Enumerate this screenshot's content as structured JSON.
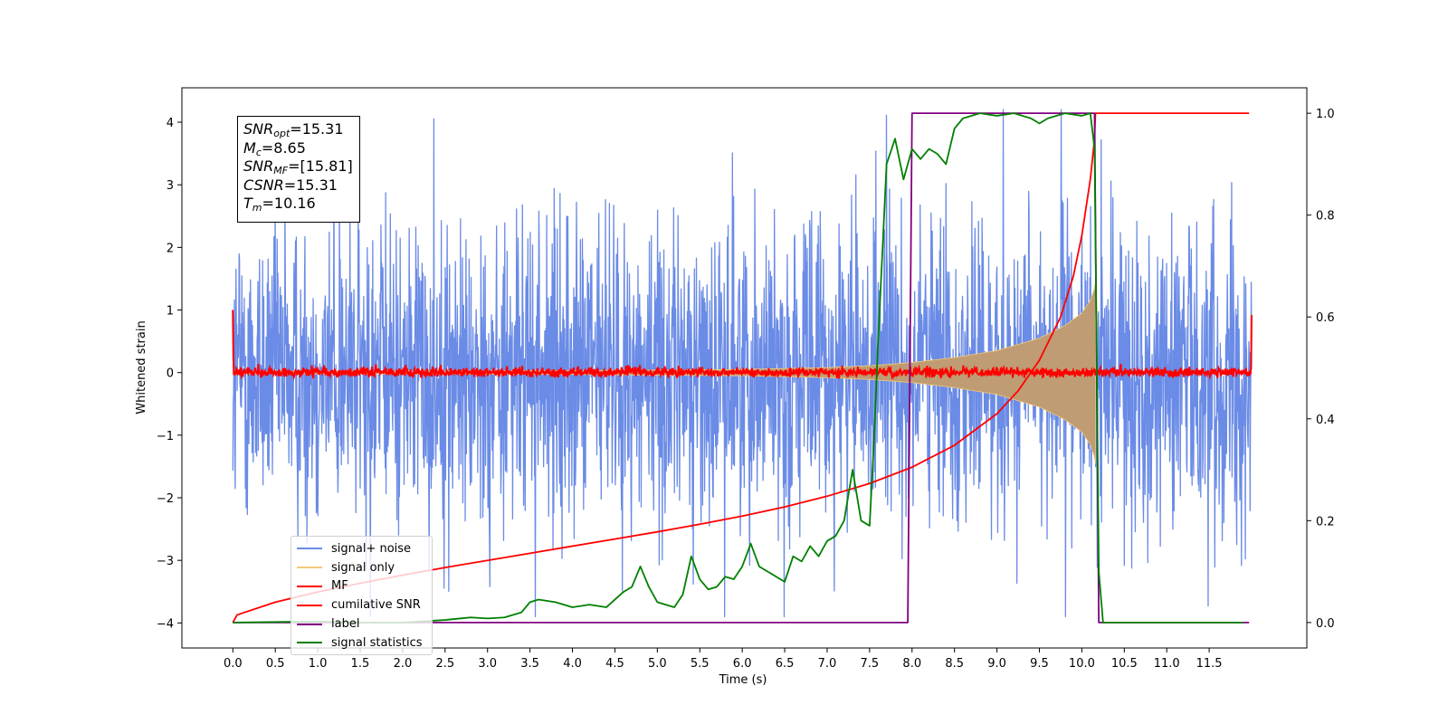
{
  "chart_data": {
    "type": "line",
    "xlabel": "Time (s)",
    "ylabel": "Whitened strain",
    "xlim": [
      -0.6,
      12.65
    ],
    "ylim": [
      -4.4,
      4.55
    ],
    "y2lim": [
      -0.05,
      1.05
    ],
    "x_ticks": [
      "0.0",
      "0.5",
      "1.0",
      "1.5",
      "2.0",
      "2.5",
      "3.0",
      "3.5",
      "4.0",
      "4.5",
      "5.0",
      "5.5",
      "6.0",
      "6.5",
      "7.0",
      "7.5",
      "8.0",
      "8.5",
      "9.0",
      "9.5",
      "10.0",
      "10.5",
      "11.0",
      "11.5"
    ],
    "y_ticks": [
      "−4",
      "−3",
      "−2",
      "−1",
      "0",
      "1",
      "2",
      "3",
      "4"
    ],
    "y2_ticks": [
      "0.0",
      "0.2",
      "0.4",
      "0.6",
      "0.8",
      "1.0"
    ],
    "grid": false,
    "legend_position": "lower-left",
    "annotation": {
      "snr_opt_sym": "SNR",
      "snr_opt_sub": "opt",
      "snr_opt_val": "=15.31",
      "mc_sym": "M",
      "mc_sub": "c",
      "mc_val": "=8.65",
      "snr_mf_sym": "SNR",
      "snr_mf_sub": "MF",
      "snr_mf_val": "=[15.81]",
      "csnr_sym": "CSNR",
      "csnr_val": "=15.31",
      "tm_sym": "T",
      "tm_sub": "m",
      "tm_val": "=10.16"
    },
    "series": [
      {
        "name": "signal+ noise",
        "color": "#6a8be6",
        "axis": "left",
        "kind": "noise",
        "amplitude_range": [
          -3.9,
          4.2
        ],
        "duration": [
          0,
          12
        ]
      },
      {
        "name": "signal only",
        "color": "#f5c97a",
        "axis": "left",
        "kind": "chirp",
        "envelope": {
          "x": [
            0,
            4,
            6,
            7,
            7.5,
            8,
            8.5,
            9,
            9.5,
            9.8,
            10.0,
            10.1,
            10.15,
            10.16
          ],
          "y": [
            0.02,
            0.03,
            0.05,
            0.08,
            0.11,
            0.16,
            0.24,
            0.35,
            0.55,
            0.75,
            0.95,
            1.15,
            1.35,
            1.45
          ]
        }
      },
      {
        "name": "MF",
        "color": "#ff0000",
        "axis": "left",
        "kind": "noise",
        "amplitude_range": [
          -0.1,
          0.2
        ],
        "edges": {
          "start": 1.0,
          "end": 0.92
        }
      },
      {
        "name": "cumilative SNR",
        "color": "#ff0000",
        "axis": "right",
        "x": [
          0,
          0.05,
          0.5,
          1,
          1.5,
          2,
          2.5,
          3,
          3.5,
          4,
          4.5,
          5,
          5.5,
          6,
          6.5,
          7,
          7.5,
          8,
          8.5,
          9,
          9.25,
          9.5,
          9.75,
          9.9,
          10.0,
          10.1,
          10.15,
          10.16,
          11.97
        ],
        "y": [
          0.0,
          0.015,
          0.04,
          0.06,
          0.077,
          0.093,
          0.108,
          0.122,
          0.136,
          0.15,
          0.164,
          0.178,
          0.193,
          0.209,
          0.227,
          0.248,
          0.273,
          0.305,
          0.348,
          0.41,
          0.455,
          0.515,
          0.6,
          0.68,
          0.76,
          0.87,
          0.95,
          1.0,
          1.0
        ]
      },
      {
        "name": "label",
        "color": "#800080",
        "axis": "right",
        "x": [
          0,
          7.95,
          8.0,
          10.15,
          10.2,
          11.97
        ],
        "y": [
          0,
          0,
          1,
          1,
          0,
          0
        ]
      },
      {
        "name": "signal statistics",
        "color": "#008000",
        "axis": "right",
        "x": [
          0,
          0.5,
          1,
          1.5,
          2,
          2.5,
          2.8,
          3.0,
          3.2,
          3.4,
          3.5,
          3.6,
          3.8,
          4.0,
          4.2,
          4.4,
          4.6,
          4.7,
          4.8,
          4.9,
          5.0,
          5.2,
          5.3,
          5.4,
          5.5,
          5.6,
          5.7,
          5.8,
          5.9,
          6.0,
          6.1,
          6.2,
          6.3,
          6.4,
          6.5,
          6.6,
          6.7,
          6.8,
          6.9,
          7.0,
          7.1,
          7.2,
          7.3,
          7.4,
          7.5,
          7.55,
          7.6,
          7.7,
          7.8,
          7.9,
          8.0,
          8.1,
          8.2,
          8.3,
          8.4,
          8.5,
          8.6,
          8.8,
          9.0,
          9.2,
          9.4,
          9.5,
          9.6,
          9.8,
          10.0,
          10.1,
          10.15,
          10.2,
          10.25,
          10.3,
          10.5,
          11.0,
          11.5,
          11.9
        ],
        "y": [
          0.0,
          0.001,
          0.002,
          0.0,
          0.0,
          0.005,
          0.01,
          0.008,
          0.01,
          0.02,
          0.04,
          0.045,
          0.04,
          0.03,
          0.035,
          0.03,
          0.06,
          0.07,
          0.11,
          0.07,
          0.04,
          0.03,
          0.055,
          0.13,
          0.085,
          0.065,
          0.07,
          0.09,
          0.085,
          0.11,
          0.155,
          0.11,
          0.1,
          0.09,
          0.08,
          0.13,
          0.12,
          0.15,
          0.13,
          0.16,
          0.17,
          0.2,
          0.3,
          0.2,
          0.19,
          0.35,
          0.55,
          0.9,
          0.95,
          0.87,
          0.93,
          0.91,
          0.93,
          0.92,
          0.9,
          0.97,
          0.99,
          1.0,
          0.995,
          1.0,
          0.99,
          0.98,
          0.99,
          1.0,
          0.995,
          1.0,
          0.93,
          0.1,
          0.0,
          0.0,
          0.0,
          0.0,
          0.0,
          0.0
        ]
      }
    ]
  }
}
